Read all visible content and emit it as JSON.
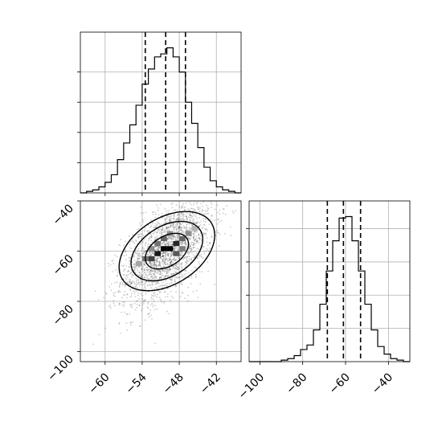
{
  "chart_data": {
    "type": "corner",
    "title": "",
    "grid": true,
    "panels": {
      "hist_x": {
        "type": "histogram",
        "xlim": [
          -64,
          -38
        ],
        "bin_edges": [
          -64,
          -63,
          -62,
          -61,
          -60,
          -59,
          -58,
          -57,
          -56,
          -55,
          -54,
          -53,
          -52,
          -51,
          -50,
          -49,
          -48,
          -47,
          -46,
          -45,
          -44,
          -43,
          -42,
          -41,
          -40,
          -39,
          -38
        ],
        "relative_heights": [
          0,
          0.01,
          0.02,
          0.04,
          0.07,
          0.12,
          0.22,
          0.33,
          0.45,
          0.58,
          0.72,
          0.82,
          0.9,
          0.92,
          0.96,
          0.9,
          0.8,
          0.6,
          0.46,
          0.3,
          0.17,
          0.08,
          0.04,
          0.02,
          0.01,
          0
        ],
        "quantiles": [
          -53.5,
          -50.2,
          -47.0
        ],
        "xticks": [
          -60,
          -54,
          -48,
          -42
        ],
        "xtick_labels": [
          "−60",
          "−54",
          "−48",
          "−42"
        ]
      },
      "hist_y": {
        "type": "histogram",
        "xlim": [
          -105,
          -30
        ],
        "bin_edges": [
          -105,
          -102,
          -99,
          -96,
          -93,
          -90,
          -87,
          -84,
          -81,
          -78,
          -75,
          -72,
          -69,
          -66,
          -63,
          -60,
          -57,
          -54,
          -51,
          -48,
          -45,
          -42,
          -39,
          -36,
          -33,
          -30
        ],
        "relative_heights": [
          0,
          0,
          0,
          0,
          0,
          0.01,
          0.02,
          0.04,
          0.08,
          0.11,
          0.21,
          0.38,
          0.6,
          0.8,
          0.95,
          0.96,
          0.8,
          0.6,
          0.38,
          0.21,
          0.1,
          0.05,
          0.02,
          0.01,
          0
        ],
        "quantiles": [
          -68.5,
          -61.0,
          -53.0
        ],
        "xticks": [
          -100,
          -80,
          -60,
          -40
        ],
        "xtick_labels": [
          "−100",
          "−80",
          "−60",
          "−40"
        ]
      },
      "scatter_2d": {
        "type": "scatter",
        "xlim": [
          -64,
          -38
        ],
        "ylim": [
          -104,
          -40
        ],
        "xticks": [
          -60,
          -54,
          -48,
          -42
        ],
        "xtick_labels": [
          "−60",
          "−54",
          "−48",
          "−42"
        ],
        "yticks": [
          -40,
          -60,
          -80,
          -100
        ],
        "ytick_labels": [
          "−40",
          "−60",
          "−80",
          "−100"
        ],
        "points_mean": [
          -50,
          -60
        ],
        "points_sd": [
          3.7,
          10.5
        ],
        "correlation": 0.55,
        "contour_levels": [
          {
            "name": "outer",
            "sigma": 2.0
          },
          {
            "name": "middle",
            "sigma": 1.5
          },
          {
            "name": "inner",
            "sigma": 0.9
          }
        ],
        "density_cells": [
          {
            "x": -52,
            "y": -62,
            "v": 0.9
          },
          {
            "x": -51,
            "y": -60,
            "v": 1.0
          },
          {
            "x": -50,
            "y": -60,
            "v": 1.0
          },
          {
            "x": -49,
            "y": -58,
            "v": 0.85
          },
          {
            "x": -53,
            "y": -64,
            "v": 0.75
          },
          {
            "x": -48,
            "y": -56,
            "v": 0.6
          },
          {
            "x": -54,
            "y": -64,
            "v": 0.55
          },
          {
            "x": -47,
            "y": -54,
            "v": 0.45
          },
          {
            "x": -51,
            "y": -56,
            "v": 0.6
          },
          {
            "x": -49,
            "y": -62,
            "v": 0.65
          },
          {
            "x": -52,
            "y": -58,
            "v": 0.55
          },
          {
            "x": -55,
            "y": -66,
            "v": 0.35
          },
          {
            "x": -46,
            "y": -52,
            "v": 0.3
          },
          {
            "x": -50,
            "y": -54,
            "v": 0.45
          },
          {
            "x": -48,
            "y": -60,
            "v": 0.5
          },
          {
            "x": -53,
            "y": -60,
            "v": 0.45
          }
        ]
      }
    }
  }
}
